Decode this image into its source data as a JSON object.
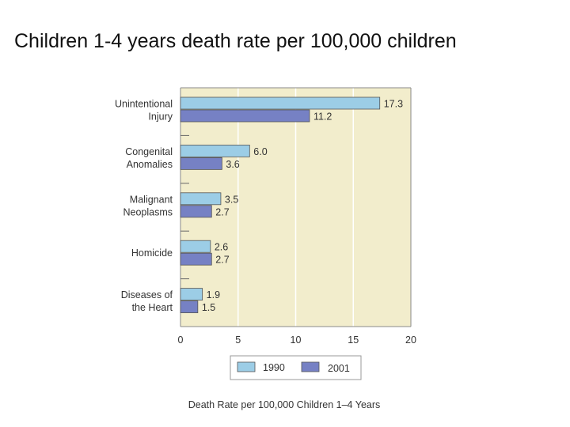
{
  "slide": {
    "title": "Children 1-4 years death rate per 100,000 children"
  },
  "chart_data": {
    "type": "bar",
    "orientation": "horizontal",
    "title": "Children 1-4 years death rate per 100,000 children",
    "xlabel": "Death Rate per 100,000 Children 1–4 Years",
    "ylabel": "",
    "xlim": [
      0,
      20
    ],
    "xticks": [
      0,
      5,
      10,
      15,
      20
    ],
    "grid": true,
    "legend_position": "bottom",
    "categories": [
      [
        "Unintentional",
        "Injury"
      ],
      [
        "Congenital",
        "Anomalies"
      ],
      [
        "Malignant",
        "Neoplasms"
      ],
      [
        "Homicide"
      ],
      [
        "Diseases of",
        "the Heart"
      ]
    ],
    "series": [
      {
        "name": "1990",
        "color": "#9ccde6",
        "values": [
          17.3,
          6.0,
          3.5,
          2.6,
          1.9
        ],
        "labels": [
          "17.3",
          "6.0",
          "3.5",
          "2.6",
          "1.9"
        ]
      },
      {
        "name": "2001",
        "color": "#7681c4",
        "values": [
          11.2,
          3.6,
          2.7,
          2.7,
          1.5
        ],
        "labels": [
          "11.2",
          "3.6",
          "2.7",
          "2.7",
          "1.5"
        ]
      }
    ],
    "colors": {
      "plot_background": "#f2edcc",
      "grid": "#ffffff",
      "frame": "#8a8a8a",
      "text": "#333333"
    }
  }
}
